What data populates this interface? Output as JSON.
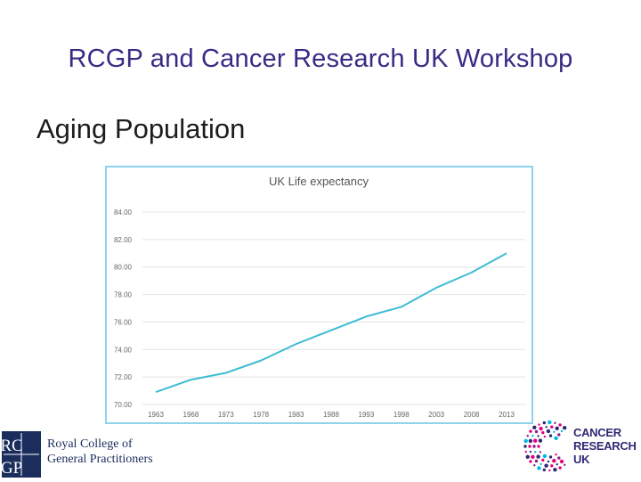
{
  "slide": {
    "title": "RCGP and Cancer Research UK Workshop",
    "subtitle": "Aging Population"
  },
  "logos": {
    "rcgp": {
      "monogram_top": "RC",
      "monogram_bottom": "GP",
      "line1": "Royal College of",
      "line2": "General Practitioners"
    },
    "cruk": {
      "line1": "CANCER",
      "line2": "RESEARCH",
      "line3": "UK"
    }
  },
  "colors": {
    "title": "#3a2a85",
    "line": "#3dbcd4",
    "frame": "#8ed3ec",
    "rcgp_navy": "#1a2d5c",
    "cruk_purple": "#2e2a74",
    "cruk_pink": "#e6007e"
  },
  "chart_data": {
    "type": "line",
    "title": "UK Life expectancy",
    "xlabel": "",
    "ylabel": "",
    "ylim": [
      70,
      84
    ],
    "yticks": [
      "70.00",
      "72.00",
      "74.00",
      "76.00",
      "78.00",
      "80.00",
      "82.00",
      "84.00"
    ],
    "categories": [
      "1963",
      "1968",
      "1973",
      "1978",
      "1983",
      "1988",
      "1993",
      "1998",
      "2003",
      "2008",
      "2013"
    ],
    "series": [
      {
        "name": "UK Life expectancy",
        "values": [
          70.9,
          71.8,
          72.3,
          73.2,
          74.4,
          75.4,
          76.4,
          77.1,
          78.5,
          79.6,
          81.0
        ]
      }
    ],
    "grid": true,
    "legend": "none"
  }
}
